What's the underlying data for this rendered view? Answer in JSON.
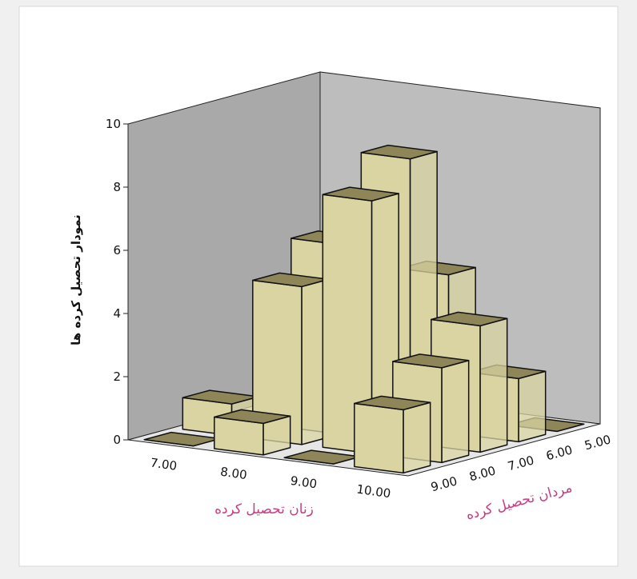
{
  "chart_data": {
    "type": "bar3d",
    "x_label": "زنان تحصیل کرده",
    "z_label": "مردان تحصیل کرده",
    "y_label": "نمودار تحصیل کرده ها",
    "categories": [
      "7.00",
      "8.00",
      "9.00",
      "10.00"
    ],
    "series": [
      {
        "name": "9.00",
        "values": [
          0,
          1,
          0,
          2
        ]
      },
      {
        "name": "8.00",
        "values": [
          1,
          5,
          8,
          3
        ]
      },
      {
        "name": "7.00",
        "values": [
          0,
          6,
          9,
          4
        ]
      },
      {
        "name": "6.00",
        "values": [
          0,
          0,
          5,
          2
        ]
      },
      {
        "name": "5.00",
        "values": [
          0,
          0,
          0,
          0
        ]
      }
    ],
    "color": "#d9d4a2",
    "ylim": [
      0,
      10
    ],
    "yticks": [
      0,
      2,
      4,
      6,
      8,
      10
    ]
  }
}
